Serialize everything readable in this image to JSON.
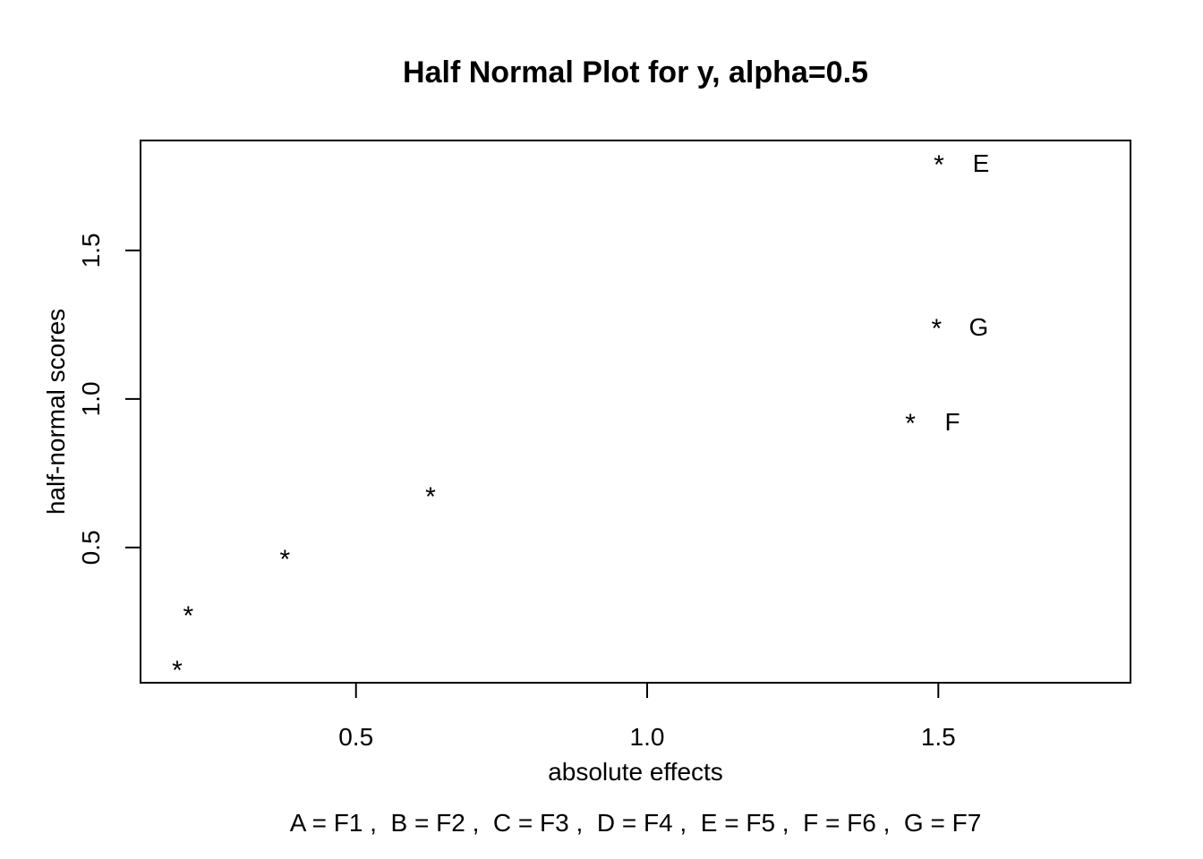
{
  "chart_data": {
    "type": "scatter",
    "title": "Half Normal Plot for y, alpha=0.5",
    "xlabel": "absolute effects",
    "ylabel": "half-normal scores",
    "subtitle": "A = F1 ,  B = F2 ,  C = F3 ,  D = F4 ,  E = F5 ,  F = F6 ,  G = F7",
    "xlim": [
      0.13,
      1.83
    ],
    "ylim": [
      0.045,
      1.87
    ],
    "x_ticks": [
      0.5,
      1.0,
      1.5
    ],
    "x_tick_labels": [
      "0.5",
      "1.0",
      "1.5"
    ],
    "y_ticks": [
      0.5,
      1.0,
      1.5
    ],
    "y_tick_labels": [
      "0.5",
      "1.0",
      "1.5"
    ],
    "grid": false,
    "marker": "*",
    "marker_color": "#000000",
    "points": [
      {
        "x": 0.193,
        "y": 0.09,
        "label": ""
      },
      {
        "x": 0.212,
        "y": 0.274,
        "label": ""
      },
      {
        "x": 0.378,
        "y": 0.463,
        "label": ""
      },
      {
        "x": 0.628,
        "y": 0.674,
        "label": ""
      },
      {
        "x": 1.452,
        "y": 0.921,
        "label": "F"
      },
      {
        "x": 1.497,
        "y": 1.241,
        "label": "G"
      },
      {
        "x": 1.501,
        "y": 1.791,
        "label": "E"
      }
    ]
  }
}
